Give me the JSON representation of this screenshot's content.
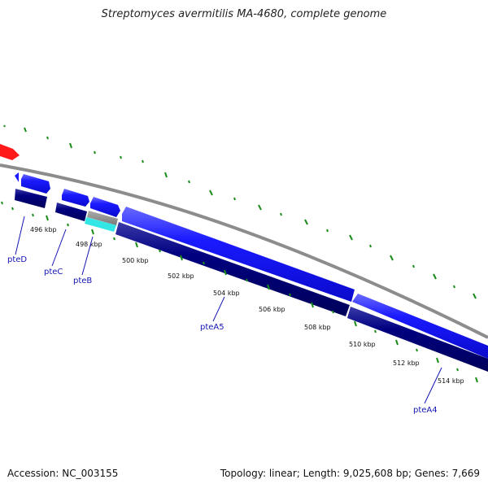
{
  "header": {
    "title": "Streptomyces avermitilis MA-4680, complete genome"
  },
  "footer": {
    "accession": "Accession: NC_003155",
    "stats": "Topology: linear; Length: 9,025,608 bp; Genes: 7,669"
  },
  "colors": {
    "forward_gene": "#1a1aff",
    "reverse_cds": "#000080",
    "rna": "#ff1a1a",
    "pseudo": "#c8c8c8",
    "other": "#33e6e6",
    "backbone": "#8c8c8c",
    "gc_ticks": "#1a8c1a",
    "label": "#1414b4"
  },
  "scale_labels": [
    "496 kbp",
    "498 kbp",
    "500 kbp",
    "502 kbp",
    "504 kbp",
    "506 kbp",
    "508 kbp",
    "510 kbp",
    "512 kbp",
    "514 kbp"
  ],
  "gene_labels": [
    "pteD",
    "pteC",
    "pteB",
    "pteA5",
    "pteA4"
  ]
}
